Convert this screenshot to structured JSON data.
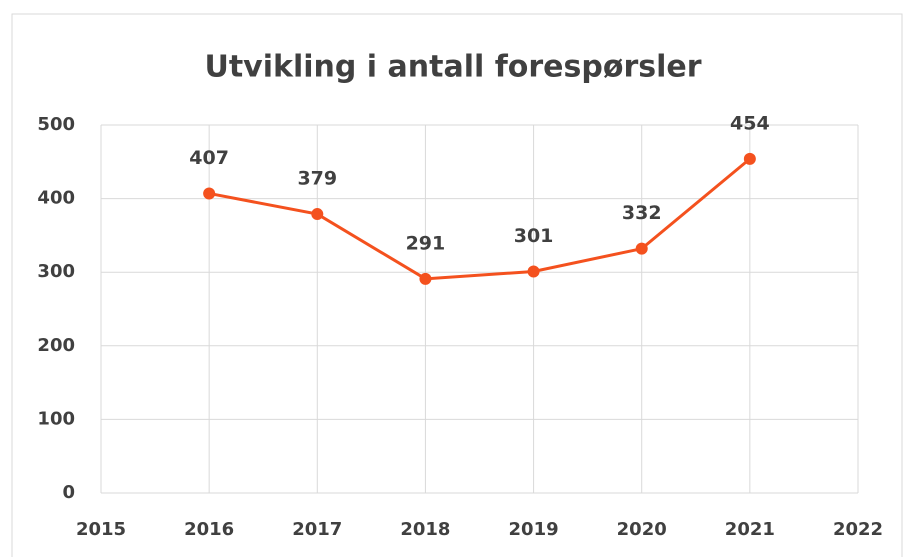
{
  "chart_data": {
    "type": "line",
    "title": "Utvikling i antall forespørsler",
    "x": [
      2016,
      2017,
      2018,
      2019,
      2020,
      2021
    ],
    "values": [
      407,
      379,
      291,
      301,
      332,
      454
    ],
    "color": "#f4511e",
    "xlim": [
      2015,
      2022
    ],
    "xticks": [
      2015,
      2016,
      2017,
      2018,
      2019,
      2020,
      2021,
      2022
    ],
    "ylim": [
      0,
      500
    ],
    "yticks": [
      0,
      100,
      200,
      300,
      400,
      500
    ],
    "grid": true
  }
}
